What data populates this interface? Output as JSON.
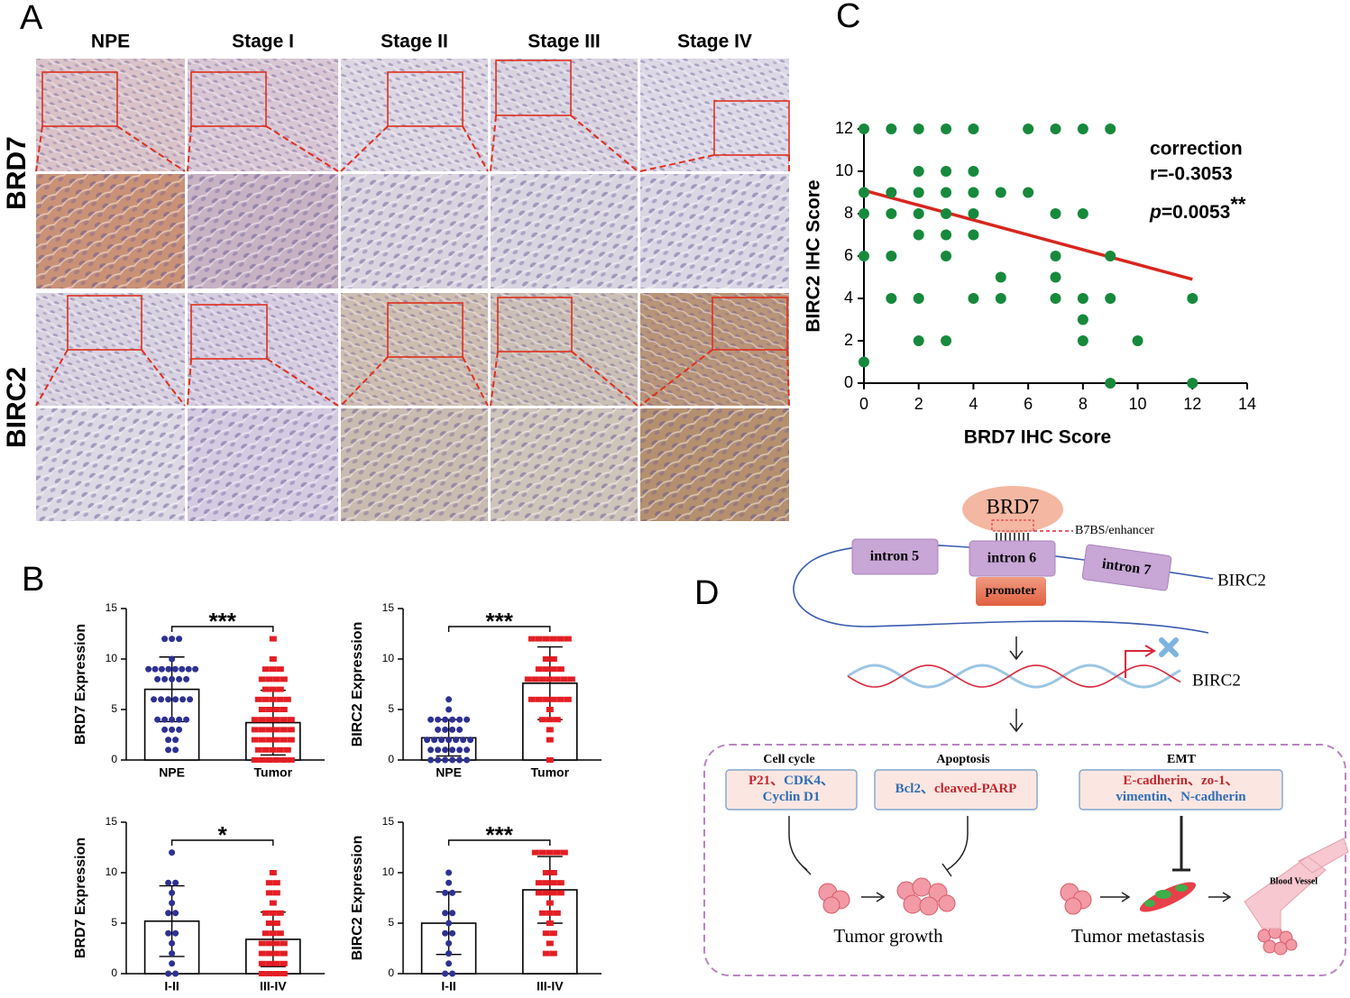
{
  "panels": {
    "a": "A",
    "b": "B",
    "c": "C",
    "d": "D"
  },
  "micrographs": {
    "columns": [
      "NPE",
      "Stage I",
      "Stage II",
      "Stage III",
      "Stage IV"
    ],
    "rows": [
      "BRD7",
      "BIRC2"
    ]
  },
  "chart_data": [
    {
      "type": "bar",
      "ylabel": "BRD7 Expression",
      "categories": [
        "NPE",
        "Tumor"
      ],
      "values": [
        7.0,
        3.7
      ],
      "errors": [
        3.2,
        3.2
      ],
      "colors": [
        "#2e3192",
        "#e31e24"
      ],
      "points": [
        [
          12,
          12,
          12,
          10,
          9,
          9,
          9,
          9,
          9,
          9,
          9,
          9,
          8,
          8,
          8,
          8,
          8,
          6,
          6,
          6,
          6,
          6,
          6,
          4,
          4,
          4,
          4,
          4,
          3,
          3,
          3,
          2,
          2,
          1,
          1
        ],
        [
          12,
          10,
          9,
          9,
          9,
          8,
          8,
          8,
          8,
          7,
          7,
          7,
          6,
          6,
          6,
          6,
          6,
          5,
          5,
          5,
          5,
          4,
          4,
          4,
          4,
          4,
          4,
          3,
          3,
          3,
          3,
          3,
          3,
          2,
          2,
          2,
          2,
          2,
          2,
          1,
          1,
          1,
          1,
          1,
          0,
          0,
          0,
          0,
          0,
          0
        ]
      ],
      "significance": "***",
      "ylim": [
        0,
        15
      ],
      "yticks": [
        0,
        5,
        10,
        15
      ]
    },
    {
      "type": "bar",
      "ylabel": "BIRC2 Expression",
      "categories": [
        "NPE",
        "Tumor"
      ],
      "values": [
        2.2,
        7.6
      ],
      "errors": [
        1.8,
        3.6
      ],
      "colors": [
        "#2e3192",
        "#e31e24"
      ],
      "points": [
        [
          6,
          5,
          4,
          4,
          4,
          4,
          4,
          4,
          3,
          3,
          3,
          3,
          2,
          2,
          2,
          2,
          2,
          2,
          2,
          1,
          1,
          1,
          1,
          1,
          1,
          0,
          0,
          0,
          0,
          0,
          0
        ],
        [
          12,
          12,
          12,
          12,
          12,
          12,
          10,
          10,
          9,
          9,
          9,
          9,
          8,
          8,
          8,
          8,
          8,
          8,
          8,
          6,
          6,
          6,
          6,
          6,
          6,
          5,
          4,
          4,
          4,
          3,
          2,
          0
        ]
      ],
      "significance": "***",
      "ylim": [
        0,
        15
      ],
      "yticks": [
        0,
        5,
        10,
        15
      ]
    },
    {
      "type": "bar",
      "ylabel": "BRD7 Expression",
      "categories": [
        "I-II",
        "III-IV"
      ],
      "values": [
        5.2,
        3.4
      ],
      "errors": [
        3.5,
        2.7
      ],
      "colors": [
        "#2e3192",
        "#e31e24"
      ],
      "points": [
        [
          12,
          9,
          9,
          8,
          7,
          6,
          6,
          4,
          4,
          3,
          2,
          1,
          0,
          0
        ],
        [
          10,
          9,
          9,
          8,
          8,
          7,
          6,
          6,
          6,
          5,
          5,
          4,
          4,
          4,
          3,
          3,
          3,
          3,
          2,
          2,
          2,
          2,
          1,
          1,
          1,
          1,
          0,
          0,
          0,
          0
        ]
      ],
      "significance": "*",
      "ylim": [
        0,
        15
      ],
      "yticks": [
        0,
        5,
        10,
        15
      ]
    },
    {
      "type": "bar",
      "ylabel": "BIRC2 Expression",
      "categories": [
        "I-II",
        "III-IV"
      ],
      "values": [
        5.0,
        8.3
      ],
      "errors": [
        3.1,
        3.3
      ],
      "colors": [
        "#2e3192",
        "#e31e24"
      ],
      "points": [
        [
          10,
          9,
          8,
          8,
          6,
          6,
          5,
          4,
          4,
          3,
          2,
          1,
          0,
          0
        ],
        [
          12,
          12,
          12,
          12,
          12,
          10,
          10,
          9,
          9,
          9,
          9,
          8,
          8,
          8,
          8,
          7,
          6,
          6,
          6,
          5,
          4,
          4,
          3,
          2,
          2
        ]
      ],
      "significance": "***",
      "ylim": [
        0,
        15
      ],
      "yticks": [
        0,
        5,
        10,
        15
      ]
    },
    {
      "type": "scatter",
      "xlabel": "BRD7 IHC Score",
      "ylabel": "BIRC2 IHC Score",
      "color": "#17893c",
      "x": [
        0,
        1,
        2,
        3,
        4,
        6,
        7,
        8,
        9,
        2,
        3,
        4,
        0,
        1,
        2,
        3,
        4,
        5,
        6,
        0,
        1,
        2,
        3,
        4,
        7,
        8,
        2,
        3,
        4,
        0,
        1,
        3,
        7,
        9,
        5,
        7,
        1,
        2,
        4,
        5,
        7,
        8,
        9,
        12,
        8,
        2,
        3,
        8,
        10,
        0,
        9,
        12
      ],
      "y": [
        12,
        12,
        12,
        12,
        12,
        12,
        12,
        12,
        12,
        10,
        10,
        10,
        9,
        9,
        9,
        9,
        9,
        9,
        9,
        8,
        8,
        8,
        8,
        8,
        8,
        8,
        7,
        7,
        7,
        6,
        6,
        6,
        6,
        6,
        5,
        5,
        4,
        4,
        4,
        4,
        4,
        4,
        4,
        4,
        3,
        2,
        2,
        2,
        2,
        1,
        0,
        0
      ],
      "trend": {
        "x": [
          0,
          12
        ],
        "y": [
          9.1,
          4.9
        ],
        "color": "#d7261e"
      },
      "annotation": {
        "title": "correction",
        "r": "r=-0.3053",
        "p_symbol": "p",
        "p_value": "=0.0053",
        "significance": "**"
      },
      "xlim": [
        0,
        14
      ],
      "xticks": [
        0,
        2,
        4,
        6,
        8,
        10,
        12,
        14
      ],
      "ylim": [
        0,
        12
      ],
      "yticks": [
        0,
        2,
        4,
        6,
        8,
        10,
        12
      ]
    }
  ],
  "diagram": {
    "factor": "BRD7",
    "binding_site": "B7BS/enhancer",
    "introns": [
      "intron 5",
      "intron 6",
      "intron 7"
    ],
    "promoter": "promoter",
    "gene": "BIRC2",
    "transcript": "BIRC2",
    "pathways": [
      {
        "title": "Cell cycle",
        "lines": [
          [
            {
              "text": "P21、",
              "color": "#c1272d"
            },
            {
              "text": "CDK4、",
              "color": "#2e6db4"
            }
          ],
          [
            {
              "text": "Cyclin D1",
              "color": "#2e6db4"
            }
          ]
        ]
      },
      {
        "title": "Apoptosis",
        "lines": [
          [
            {
              "text": "Bcl2、",
              "color": "#2e6db4"
            },
            {
              "text": "cleaved-PARP",
              "color": "#c1272d"
            }
          ]
        ]
      },
      {
        "title": "EMT",
        "lines": [
          [
            {
              "text": "E-cadherin、",
              "color": "#c1272d"
            },
            {
              "text": "zo-1、",
              "color": "#c1272d"
            }
          ],
          [
            {
              "text": "vimentin、",
              "color": "#2e6db4"
            },
            {
              "text": "N-cadherin",
              "color": "#2e6db4"
            }
          ]
        ]
      }
    ],
    "outcomes": [
      "Tumor growth",
      "Tumor metastasis"
    ],
    "vessel": "Blood Vessel"
  }
}
